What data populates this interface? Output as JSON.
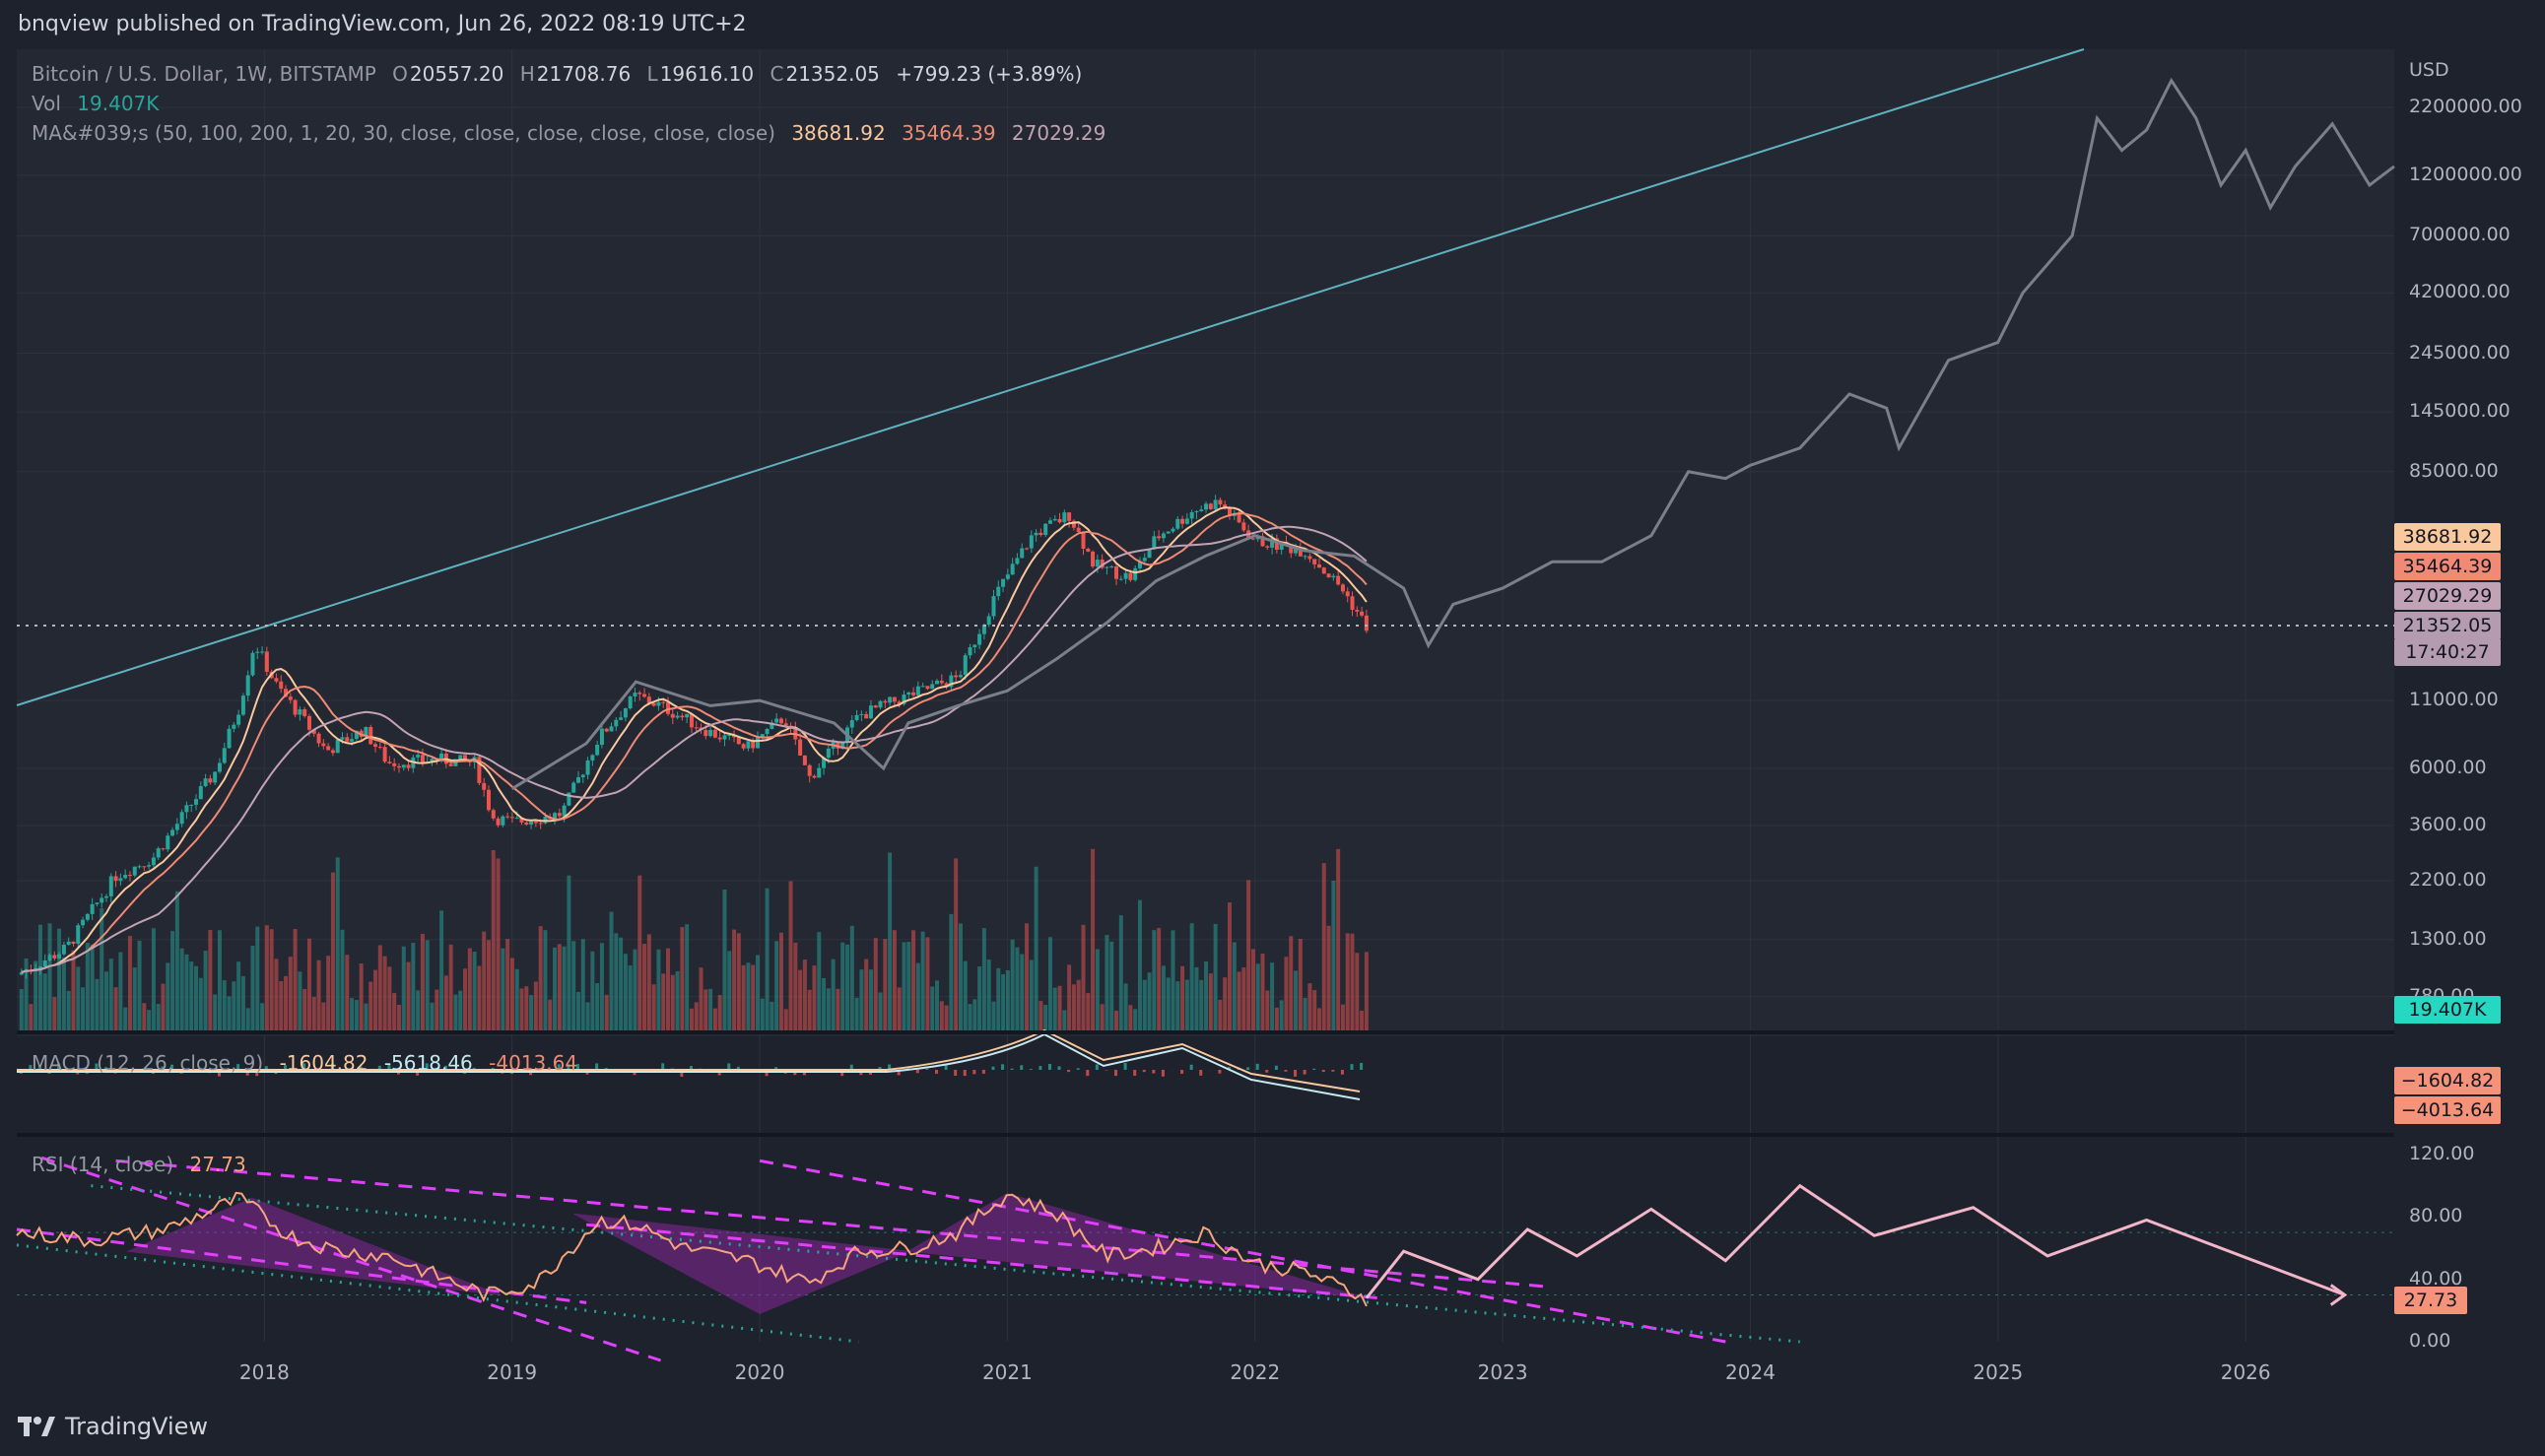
{
  "header": {
    "published": "bnqview published on TradingView.com, Jun 26, 2022 08:19 UTC+2"
  },
  "legend": {
    "symbol": "Bitcoin / U.S. Dollar, 1W, BITSTAMP",
    "open_k": "O",
    "open": "20557.20",
    "high_k": "H",
    "high": "21708.76",
    "low_k": "L",
    "low": "19616.10",
    "close_k": "C",
    "close": "21352.05",
    "change": "+799.23 (+3.89%)",
    "vol_label": "Vol",
    "vol_value": "19.407K",
    "ma_label": "MA&#039;s (50, 100, 200, 1, 20, 30, close, close, close, close, close, close)",
    "ma1": "38681.92",
    "ma2": "35464.39",
    "ma3": "27029.29",
    "macd_label": "MACD (12, 26, close, 9)",
    "macd1": "-1604.82",
    "macd2": "-5618.46",
    "macd3": "-4013.64",
    "rsi_label": "RSI (14, close)",
    "rsi_value": "27.73"
  },
  "price_tags": {
    "ma1": "38681.92",
    "ma2": "35464.39",
    "ma3": "27029.29",
    "last": "21352.05",
    "countdown": "17:40:27",
    "vol": "19.407K",
    "macd1": "−1604.82",
    "macd3": "−4013.64",
    "rsi": "27.73"
  },
  "colors": {
    "background": "#1e222d",
    "pane": "#242833",
    "grid": "#2e323d",
    "up": "#26a69a",
    "down": "#ef5350",
    "ma1": "#f9c89d",
    "ma2": "#f08a74",
    "ma3": "#c2a3b5",
    "trendline": "#5fb3bf",
    "projection": "#7b7f8a",
    "rsi": "#f6a57a",
    "rsi_projection": "#f3b6c8",
    "rsi_fill": "#9c27b0",
    "rsi_channel": "#e040fb",
    "rsi_support": "#26a69a"
  },
  "chart_data": {
    "type": "candlestick",
    "title": "Bitcoin / U.S. Dollar, 1W, BITSTAMP",
    "y_axis_unit": "USD",
    "y_scale": "log",
    "y_ticks": [
      "2200000.00",
      "1200000.00",
      "700000.00",
      "420000.00",
      "245000.00",
      "145000.00",
      "85000.00",
      "11000.00",
      "6000.00",
      "3600.00",
      "2200.00",
      "1300.00",
      "780.00"
    ],
    "x_ticks": [
      "2018",
      "2019",
      "2020",
      "2021",
      "2022",
      "2023",
      "2024",
      "2025",
      "2026"
    ],
    "rsi_ticks": [
      "120.00",
      "80.00",
      "40.00",
      "0.00"
    ],
    "price_path": [
      [
        2017.0,
        950
      ],
      [
        2017.2,
        1200
      ],
      [
        2017.4,
        2300
      ],
      [
        2017.55,
        2700
      ],
      [
        2017.7,
        4300
      ],
      [
        2017.8,
        5800
      ],
      [
        2017.9,
        10500
      ],
      [
        2017.96,
        18500
      ],
      [
        2018.05,
        12500
      ],
      [
        2018.15,
        9500
      ],
      [
        2018.25,
        7000
      ],
      [
        2018.4,
        8500
      ],
      [
        2018.5,
        6300
      ],
      [
        2018.7,
        6500
      ],
      [
        2018.85,
        6300
      ],
      [
        2018.92,
        3900
      ],
      [
        2019.0,
        3700
      ],
      [
        2019.2,
        4000
      ],
      [
        2019.35,
        7900
      ],
      [
        2019.5,
        11500
      ],
      [
        2019.6,
        10500
      ],
      [
        2019.8,
        8300
      ],
      [
        2019.95,
        7200
      ],
      [
        2020.1,
        9500
      ],
      [
        2020.2,
        5500
      ],
      [
        2020.4,
        9600
      ],
      [
        2020.6,
        11500
      ],
      [
        2020.8,
        13500
      ],
      [
        2020.95,
        28000
      ],
      [
        2021.1,
        48000
      ],
      [
        2021.25,
        58000
      ],
      [
        2021.35,
        37000
      ],
      [
        2021.5,
        33000
      ],
      [
        2021.6,
        47000
      ],
      [
        2021.75,
        60000
      ],
      [
        2021.85,
        65000
      ],
      [
        2022.0,
        46000
      ],
      [
        2022.2,
        42000
      ],
      [
        2022.35,
        30000
      ],
      [
        2022.45,
        21352
      ]
    ],
    "projection_path": [
      [
        2019.0,
        5000
      ],
      [
        2019.3,
        7500
      ],
      [
        2019.5,
        13000
      ],
      [
        2019.8,
        10500
      ],
      [
        2020.0,
        11000
      ],
      [
        2020.3,
        9000
      ],
      [
        2020.5,
        6000
      ],
      [
        2020.6,
        9000
      ],
      [
        2020.8,
        10500
      ],
      [
        2021.0,
        12000
      ],
      [
        2021.2,
        16000
      ],
      [
        2021.4,
        22000
      ],
      [
        2021.6,
        32000
      ],
      [
        2021.8,
        40000
      ],
      [
        2022.0,
        48000
      ],
      [
        2022.2,
        42000
      ],
      [
        2022.4,
        40000
      ],
      [
        2022.6,
        30000
      ],
      [
        2022.7,
        18000
      ],
      [
        2022.8,
        26000
      ],
      [
        2023.0,
        30000
      ],
      [
        2023.2,
        38000
      ],
      [
        2023.4,
        38000
      ],
      [
        2023.6,
        48000
      ],
      [
        2023.75,
        85000
      ],
      [
        2023.9,
        80000
      ],
      [
        2024.0,
        90000
      ],
      [
        2024.2,
        105000
      ],
      [
        2024.4,
        170000
      ],
      [
        2024.55,
        150000
      ],
      [
        2024.6,
        105000
      ],
      [
        2024.8,
        230000
      ],
      [
        2025.0,
        270000
      ],
      [
        2025.1,
        420000
      ],
      [
        2025.3,
        700000
      ],
      [
        2025.4,
        2000000
      ],
      [
        2025.5,
        1500000
      ],
      [
        2025.6,
        1800000
      ],
      [
        2025.7,
        2800000
      ],
      [
        2025.8,
        2000000
      ],
      [
        2025.9,
        1100000
      ],
      [
        2026.0,
        1500000
      ],
      [
        2026.1,
        900000
      ],
      [
        2026.2,
        1300000
      ],
      [
        2026.35,
        1900000
      ],
      [
        2026.5,
        1100000
      ],
      [
        2026.6,
        1300000
      ]
    ],
    "moving_averages": [
      {
        "name": "MA 50",
        "value": 38681.92
      },
      {
        "name": "MA 100",
        "value": 35464.39
      },
      {
        "name": "MA 200",
        "value": 27029.29
      }
    ],
    "rsi_path": [
      [
        2017.0,
        70
      ],
      [
        2017.3,
        65
      ],
      [
        2017.6,
        72
      ],
      [
        2017.9,
        92
      ],
      [
        2018.1,
        68
      ],
      [
        2018.3,
        58
      ],
      [
        2018.5,
        55
      ],
      [
        2018.7,
        42
      ],
      [
        2018.9,
        30
      ],
      [
        2019.1,
        38
      ],
      [
        2019.35,
        78
      ],
      [
        2019.5,
        75
      ],
      [
        2019.7,
        60
      ],
      [
        2019.95,
        52
      ],
      [
        2020.2,
        38
      ],
      [
        2020.4,
        58
      ],
      [
        2020.6,
        60
      ],
      [
        2020.8,
        70
      ],
      [
        2021.0,
        95
      ],
      [
        2021.2,
        82
      ],
      [
        2021.4,
        55
      ],
      [
        2021.6,
        60
      ],
      [
        2021.8,
        70
      ],
      [
        2022.0,
        50
      ],
      [
        2022.2,
        45
      ],
      [
        2022.45,
        27.73
      ]
    ],
    "rsi_projection": [
      [
        2022.45,
        28
      ],
      [
        2022.6,
        58
      ],
      [
        2022.9,
        40
      ],
      [
        2023.1,
        72
      ],
      [
        2023.3,
        55
      ],
      [
        2023.6,
        85
      ],
      [
        2023.9,
        52
      ],
      [
        2024.2,
        100
      ],
      [
        2024.5,
        68
      ],
      [
        2024.9,
        86
      ],
      [
        2025.2,
        55
      ],
      [
        2025.6,
        78
      ],
      [
        2026.4,
        30
      ]
    ]
  }
}
